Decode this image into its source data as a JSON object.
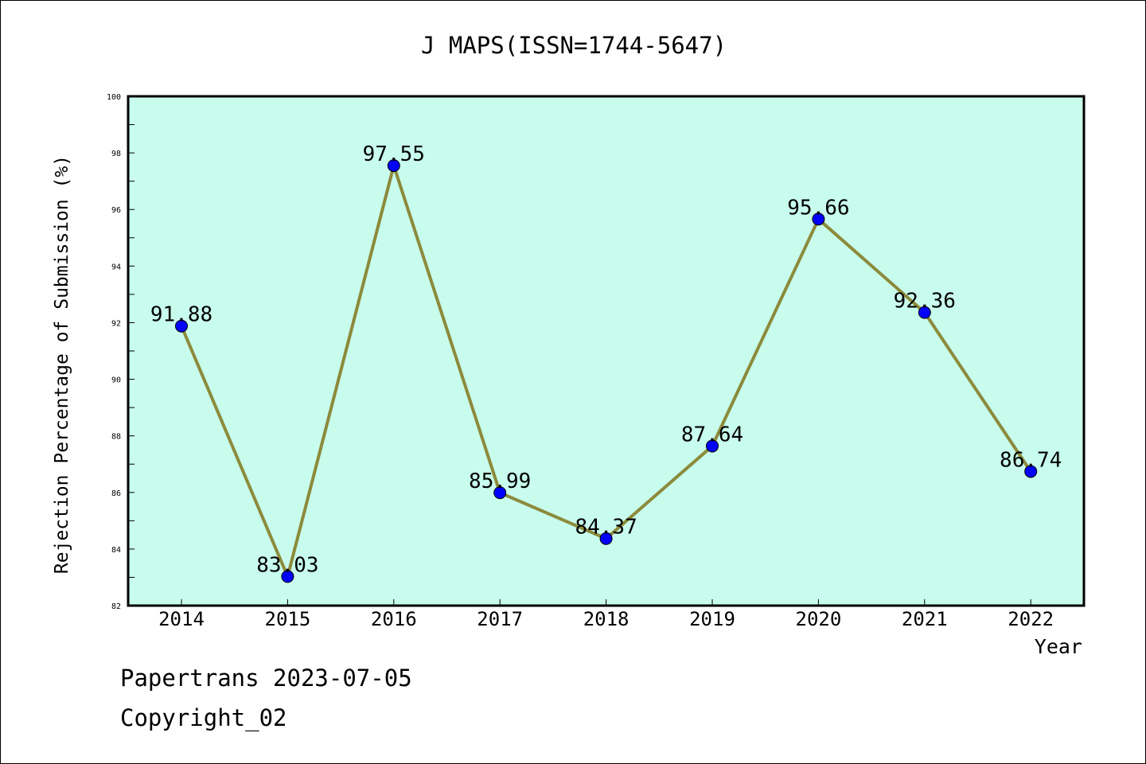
{
  "chart_data": {
    "type": "line",
    "title": "J MAPS(ISSN=1744-5647)",
    "xlabel": "Year",
    "ylabel": "Rejection Percentage of Submission (%)",
    "categories": [
      "2014",
      "2015",
      "2016",
      "2017",
      "2018",
      "2019",
      "2020",
      "2021",
      "2022"
    ],
    "values": [
      91.88,
      83.03,
      97.55,
      85.99,
      84.37,
      87.64,
      95.66,
      92.36,
      86.74
    ],
    "value_labels": [
      "91.88",
      "83.03",
      "97.55",
      "85.99",
      "84.37",
      "87.64",
      "95.66",
      "92.36",
      "86.74"
    ],
    "ylim": [
      82,
      100
    ],
    "yticks": [
      "82",
      "84",
      "86",
      "88",
      "90",
      "92",
      "94",
      "96",
      "98",
      "100"
    ],
    "grid": false,
    "colors": {
      "plot_background": "#c8fcec",
      "line": "#8c8a3c",
      "marker": "#0000ff"
    }
  },
  "footer": {
    "source": "Papertrans 2023-07-05",
    "copyright": "Copyright_02"
  }
}
